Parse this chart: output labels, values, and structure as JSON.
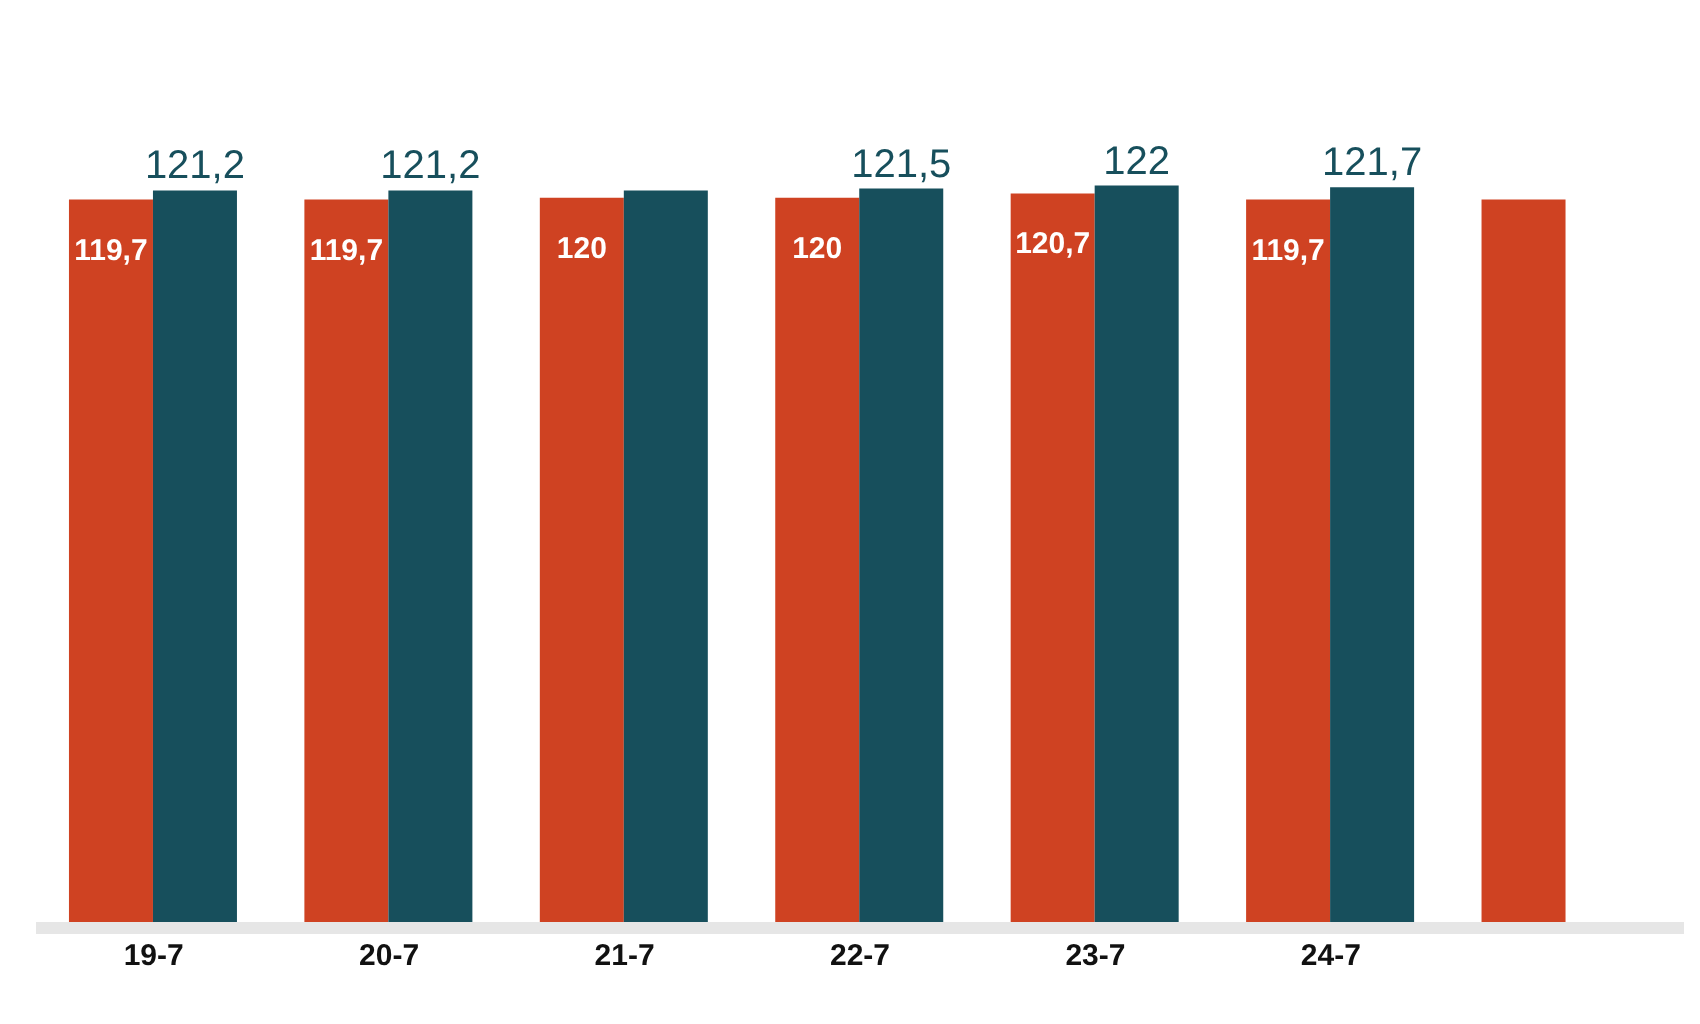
{
  "chart_data": {
    "type": "bar",
    "categories": [
      "19-7",
      "20-7",
      "21-7",
      "22-7",
      "23-7",
      "24-7",
      null
    ],
    "series": [
      {
        "color": "#cf4222",
        "values": [
          119.7,
          119.7,
          120,
          120,
          120.7,
          119.7,
          119.7
        ],
        "value_labels": [
          "119,7",
          "119,7",
          "120",
          "120",
          "120,7",
          "119,7",
          null
        ]
      },
      {
        "color": "#174f5c",
        "values": [
          121.2,
          121.2,
          121.2,
          121.5,
          122,
          121.7,
          null
        ],
        "value_labels": [
          "121,2",
          "121,2",
          null,
          "121,5",
          "122",
          "121,7",
          null
        ]
      }
    ],
    "tick_labels": "x"
  }
}
